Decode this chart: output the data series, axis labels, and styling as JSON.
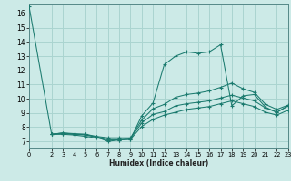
{
  "background_color": "#cceae7",
  "grid_color": "#aad4d0",
  "line_color": "#1a7a6e",
  "xlim": [
    0,
    23
  ],
  "ylim": [
    6.5,
    16.7
  ],
  "xticks": [
    0,
    2,
    3,
    4,
    5,
    6,
    7,
    8,
    9,
    10,
    11,
    12,
    13,
    14,
    15,
    16,
    17,
    18,
    19,
    20,
    21,
    22,
    23
  ],
  "yticks": [
    7,
    8,
    9,
    10,
    11,
    12,
    13,
    14,
    15,
    16
  ],
  "xlabel": "Humidex (Indice chaleur)",
  "series": [
    {
      "x": [
        0,
        2,
        3,
        4,
        5,
        6,
        7,
        8,
        9,
        10,
        11,
        12,
        13,
        14,
        15,
        16,
        17,
        18,
        19,
        20,
        21,
        22,
        23
      ],
      "y": [
        16.5,
        7.5,
        7.6,
        7.5,
        7.5,
        7.3,
        7.0,
        7.1,
        7.15,
        8.8,
        9.7,
        12.4,
        13.0,
        13.3,
        13.2,
        13.3,
        13.8,
        9.5,
        10.2,
        10.3,
        9.4,
        9.05,
        9.5
      ]
    },
    {
      "x": [
        2,
        3,
        4,
        5,
        6,
        7,
        8,
        9,
        10,
        11,
        12,
        13,
        14,
        15,
        16,
        17,
        18,
        19,
        20,
        21,
        22,
        23
      ],
      "y": [
        7.5,
        7.6,
        7.55,
        7.5,
        7.35,
        7.25,
        7.25,
        7.25,
        8.5,
        9.3,
        9.6,
        10.1,
        10.3,
        10.4,
        10.55,
        10.8,
        11.1,
        10.7,
        10.45,
        9.6,
        9.25,
        9.55
      ]
    },
    {
      "x": [
        2,
        3,
        4,
        5,
        6,
        7,
        8,
        9,
        10,
        11,
        12,
        13,
        14,
        15,
        16,
        17,
        18,
        19,
        20,
        21,
        22,
        23
      ],
      "y": [
        7.5,
        7.55,
        7.5,
        7.45,
        7.3,
        7.2,
        7.2,
        7.2,
        8.3,
        8.9,
        9.1,
        9.5,
        9.65,
        9.75,
        9.85,
        10.05,
        10.25,
        10.05,
        9.85,
        9.35,
        9.05,
        9.5
      ]
    },
    {
      "x": [
        2,
        3,
        4,
        5,
        6,
        7,
        8,
        9,
        10,
        11,
        12,
        13,
        14,
        15,
        16,
        17,
        18,
        19,
        20,
        21,
        22,
        23
      ],
      "y": [
        7.5,
        7.5,
        7.45,
        7.35,
        7.25,
        7.1,
        7.1,
        7.15,
        8.05,
        8.55,
        8.85,
        9.05,
        9.25,
        9.35,
        9.45,
        9.65,
        9.85,
        9.65,
        9.45,
        9.05,
        8.85,
        9.2
      ]
    }
  ]
}
